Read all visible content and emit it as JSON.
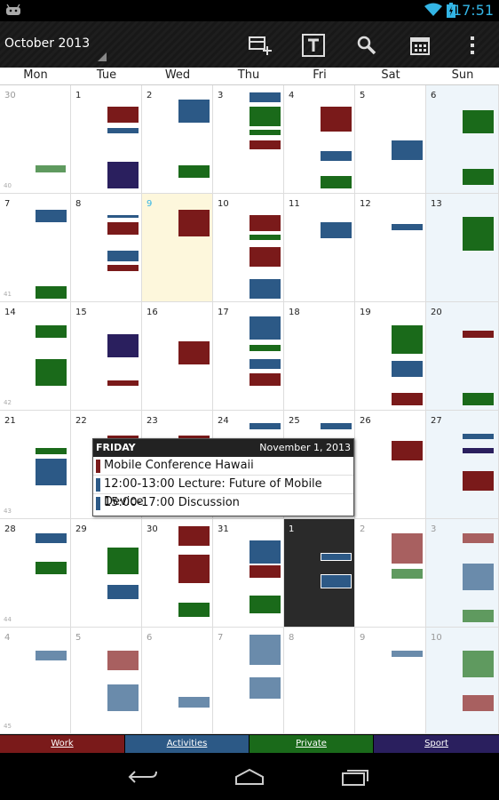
{
  "status": {
    "time": "17:51"
  },
  "actionbar": {
    "title": "October 2013"
  },
  "day_headers": [
    "Mon",
    "Tue",
    "Wed",
    "Thu",
    "Fri",
    "Sat",
    "Sun"
  ],
  "weeks": [
    {
      "number": "40",
      "days": [
        "30",
        "1",
        "2",
        "3",
        "4",
        "5",
        "6"
      ]
    },
    {
      "number": "41",
      "days": [
        "7",
        "8",
        "9",
        "10",
        "11",
        "12",
        "13"
      ]
    },
    {
      "number": "42",
      "days": [
        "14",
        "15",
        "16",
        "17",
        "18",
        "19",
        "20"
      ]
    },
    {
      "number": "43",
      "days": [
        "21",
        "22",
        "23",
        "24",
        "25",
        "26",
        "27"
      ]
    },
    {
      "number": "44",
      "days": [
        "28",
        "29",
        "30",
        "31",
        "1",
        "2",
        "3"
      ]
    },
    {
      "number": "45",
      "days": [
        "4",
        "5",
        "6",
        "7",
        "8",
        "9",
        "10"
      ]
    }
  ],
  "colors": {
    "work": "#7a1a1a",
    "activities": "#2c5986",
    "private": "#1a6a1a",
    "sport": "#2a1f5e"
  },
  "popup": {
    "day": "FRIDAY",
    "date": "November 1, 2013",
    "events": [
      {
        "time": "",
        "title": "Mobile Conference Hawaii",
        "category": "work"
      },
      {
        "time": "12:00-13:00",
        "title": "Lecture: Future of Mobile Device",
        "category": "activities"
      },
      {
        "time": "15:00-17:00",
        "title": "Discussion",
        "category": "activities"
      }
    ]
  },
  "legend": [
    {
      "label": "Work",
      "color": "#7a1a1a"
    },
    {
      "label": "Activities",
      "color": "#2c5986"
    },
    {
      "label": "Private",
      "color": "#1a6a1a"
    },
    {
      "label": "Sport",
      "color": "#2a1f5e"
    }
  ]
}
